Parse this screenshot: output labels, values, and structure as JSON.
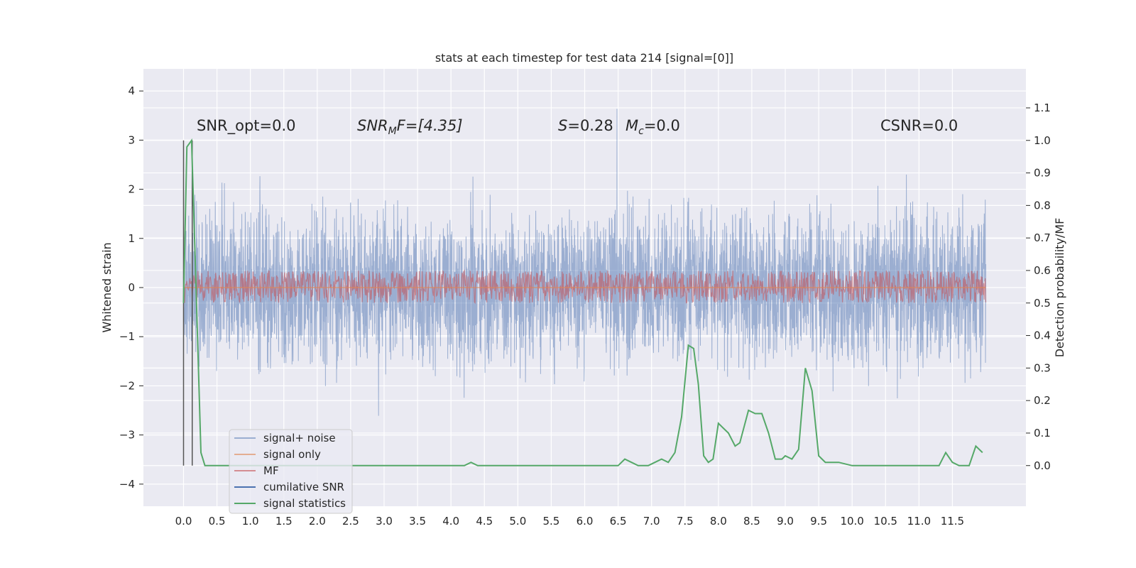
{
  "chart_data": {
    "type": "line",
    "title": "stats at each timestep for test data 214 [signal=[0]]",
    "ylabel": "Whitened strain",
    "y2label": "Detection probability/MF",
    "xlim": [
      -0.6,
      12.6
    ],
    "ylim": [
      -4.45,
      4.45
    ],
    "y2lim": [
      -0.125,
      1.22
    ],
    "x_ticks": [
      "0.0",
      "0.5",
      "1.0",
      "1.5",
      "2.0",
      "2.5",
      "3.0",
      "3.5",
      "4.0",
      "4.5",
      "5.0",
      "5.5",
      "6.0",
      "6.5",
      "7.0",
      "7.5",
      "8.0",
      "8.5",
      "9.0",
      "9.5",
      "10.0",
      "10.5",
      "11.0",
      "11.5"
    ],
    "y_ticks": [
      4,
      3,
      2,
      1,
      0,
      -1,
      -2,
      -3,
      -4
    ],
    "y2_ticks": [
      "1.1",
      "1.0",
      "0.9",
      "0.8",
      "0.7",
      "0.6",
      "0.5",
      "0.4",
      "0.3",
      "0.2",
      "0.1",
      "0.0"
    ],
    "grid": true,
    "legend_location": "lower-left",
    "annotations": {
      "snr_opt": "SNR_opt=0.0",
      "snr_mf_base": "SNR",
      "snr_mf_sub": "M",
      "snr_mf_rest": "F=[4.35]",
      "s_label": "S",
      "s_value": "=0.28",
      "mc_label": "M",
      "mc_sub": "c",
      "mc_value": "=0.0",
      "csnr": "CSNR=0.0"
    },
    "vlines_x": [
      0.0,
      0.13
    ],
    "series": [
      {
        "name": "signal+ noise",
        "color": "#4c72b0",
        "style": "noise",
        "amplitude": 1.9,
        "x_end": 12.0
      },
      {
        "name": "signal only",
        "color": "#dd8452",
        "values_constant": 0.0
      },
      {
        "name": "MF",
        "color": "#c44e52",
        "band_y2": [
          0.5,
          0.6
        ]
      },
      {
        "name": "cumilative SNR",
        "color": "#4c72b0"
      },
      {
        "name": "signal statistics",
        "color": "#55a868",
        "x": [
          0.0,
          0.05,
          0.12,
          0.18,
          0.26,
          0.32,
          0.4,
          1.0,
          2.0,
          3.0,
          4.0,
          4.2,
          4.3,
          4.4,
          4.6,
          5.0,
          6.0,
          6.5,
          6.6,
          6.7,
          6.8,
          6.95,
          7.05,
          7.15,
          7.25,
          7.35,
          7.45,
          7.55,
          7.63,
          7.7,
          7.78,
          7.85,
          7.92,
          8.0,
          8.05,
          8.15,
          8.25,
          8.32,
          8.45,
          8.55,
          8.65,
          8.75,
          8.85,
          8.95,
          9.0,
          9.1,
          9.2,
          9.3,
          9.4,
          9.5,
          9.6,
          9.8,
          10.0,
          10.3,
          10.5,
          11.0,
          11.3,
          11.4,
          11.5,
          11.6,
          11.75,
          11.85,
          11.95
        ],
        "values": [
          0.5,
          0.98,
          1.0,
          0.6,
          0.04,
          0.0,
          0.0,
          0.0,
          0.0,
          0.0,
          0.0,
          0.0,
          0.01,
          0.0,
          0.0,
          0.0,
          0.0,
          0.0,
          0.02,
          0.01,
          0.0,
          0.0,
          0.01,
          0.02,
          0.01,
          0.04,
          0.15,
          0.37,
          0.36,
          0.25,
          0.03,
          0.01,
          0.02,
          0.13,
          0.12,
          0.1,
          0.06,
          0.07,
          0.17,
          0.16,
          0.16,
          0.1,
          0.02,
          0.02,
          0.03,
          0.02,
          0.05,
          0.3,
          0.23,
          0.03,
          0.01,
          0.01,
          0.0,
          0.0,
          0.0,
          0.0,
          0.0,
          0.04,
          0.01,
          0.0,
          0.0,
          0.06,
          0.04
        ]
      }
    ]
  }
}
